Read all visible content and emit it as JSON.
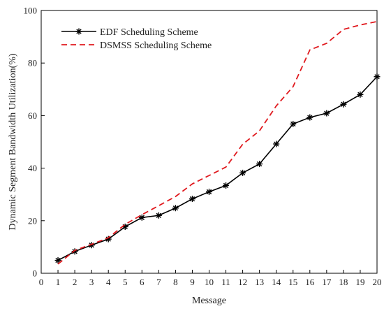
{
  "chart_data": {
    "type": "line",
    "xlabel": "Message",
    "ylabel": "Dynamic Segment Bandwidth Utilization(%)",
    "xlim": [
      0,
      20
    ],
    "ylim": [
      0,
      100
    ],
    "x_ticks": [
      0,
      1,
      2,
      3,
      4,
      5,
      6,
      7,
      8,
      9,
      10,
      11,
      12,
      13,
      14,
      15,
      16,
      17,
      18,
      19,
      20
    ],
    "y_ticks": [
      0,
      20,
      40,
      60,
      80,
      100
    ],
    "grid": false,
    "legend_position": "top-left",
    "x": [
      1,
      2,
      3,
      4,
      5,
      6,
      7,
      8,
      9,
      10,
      11,
      12,
      13,
      14,
      15,
      16,
      17,
      18,
      19,
      20
    ],
    "series": [
      {
        "name": "EDF Scheduling Scheme",
        "color": "#000000",
        "line_style": "solid",
        "marker": "asterisk",
        "values": [
          4.9,
          8.3,
          10.7,
          13.0,
          17.7,
          21.2,
          22.0,
          24.8,
          28.3,
          31.0,
          33.4,
          38.2,
          41.6,
          49.2,
          56.8,
          59.3,
          60.9,
          64.3,
          68.0,
          74.8
        ]
      },
      {
        "name": "DSMSS Scheduling Scheme",
        "color": "#e0191e",
        "line_style": "dashed",
        "marker": "none",
        "values": [
          3.5,
          8.7,
          11.0,
          13.5,
          18.6,
          22.3,
          25.7,
          29.2,
          34.0,
          37.2,
          40.4,
          49.1,
          54.2,
          63.7,
          71.0,
          85.0,
          87.5,
          92.8,
          94.5,
          95.8
        ]
      }
    ]
  }
}
